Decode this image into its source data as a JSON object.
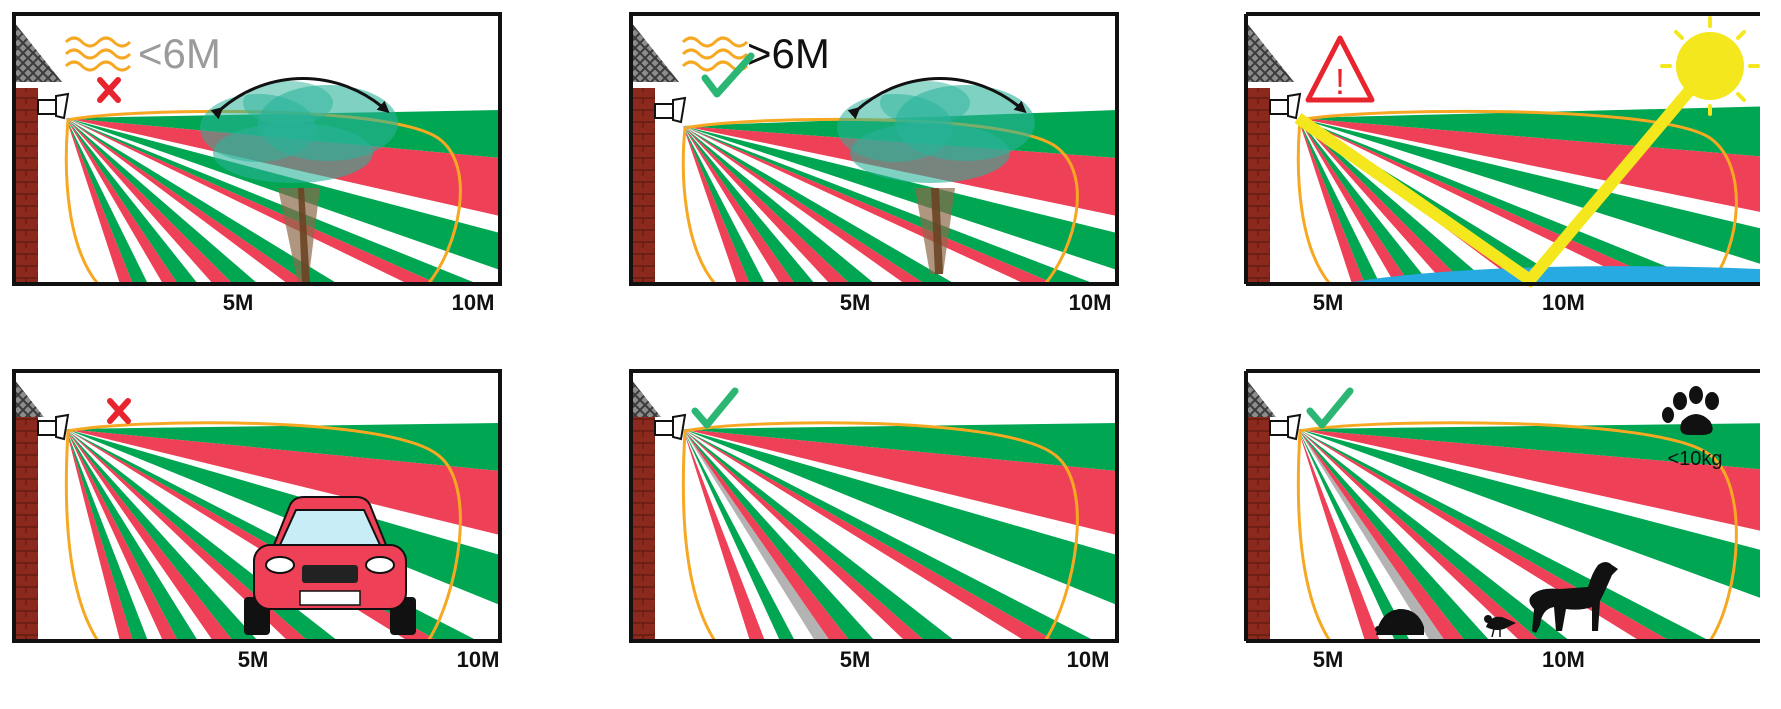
{
  "colors": {
    "green": "#00a651",
    "red": "#ee4056",
    "orange": "#f7a823",
    "teal": "#2ab39a",
    "brick": "#8b2a1c",
    "yellow": "#f4e71e",
    "water": "#27a9e1",
    "cross": "#e8252e",
    "check": "#2bb673",
    "warning": "#e8252e"
  },
  "panels": [
    {
      "id": "tree-low-detector",
      "scale": {
        "mid": "5M",
        "far": "10M"
      },
      "height_label": "<6M",
      "status": "cross",
      "icons": [
        "heat-waves-icon",
        "cross-icon",
        "tree-icon",
        "sway-arrow-icon"
      ]
    },
    {
      "id": "tree-high-detector",
      "scale": {
        "mid": "5M",
        "far": "10M"
      },
      "height_label": ">6M",
      "status": "check",
      "icons": [
        "heat-waves-icon",
        "check-icon",
        "tree-icon",
        "sway-arrow-icon"
      ]
    },
    {
      "id": "sun-reflection",
      "scale": {
        "mid": "5M",
        "far": "10M"
      },
      "warning_text": "!",
      "status": "warning",
      "icons": [
        "warning-icon",
        "sun-icon",
        "sun-reflection-icon",
        "water-icon"
      ]
    },
    {
      "id": "car",
      "scale": {
        "mid": "5M",
        "far": "10M"
      },
      "status": "cross",
      "icons": [
        "cross-icon",
        "car-icon"
      ]
    },
    {
      "id": "clear-zone",
      "scale": {
        "mid": "5M",
        "far": "10M"
      },
      "status": "check",
      "icons": [
        "check-icon"
      ]
    },
    {
      "id": "small-animals",
      "scale": {
        "mid": "5M",
        "far": "10M"
      },
      "weight_label": "<10kg",
      "status": "check",
      "icons": [
        "check-icon",
        "paw-icon",
        "hedgehog-icon",
        "bird-icon",
        "dog-icon"
      ]
    }
  ]
}
